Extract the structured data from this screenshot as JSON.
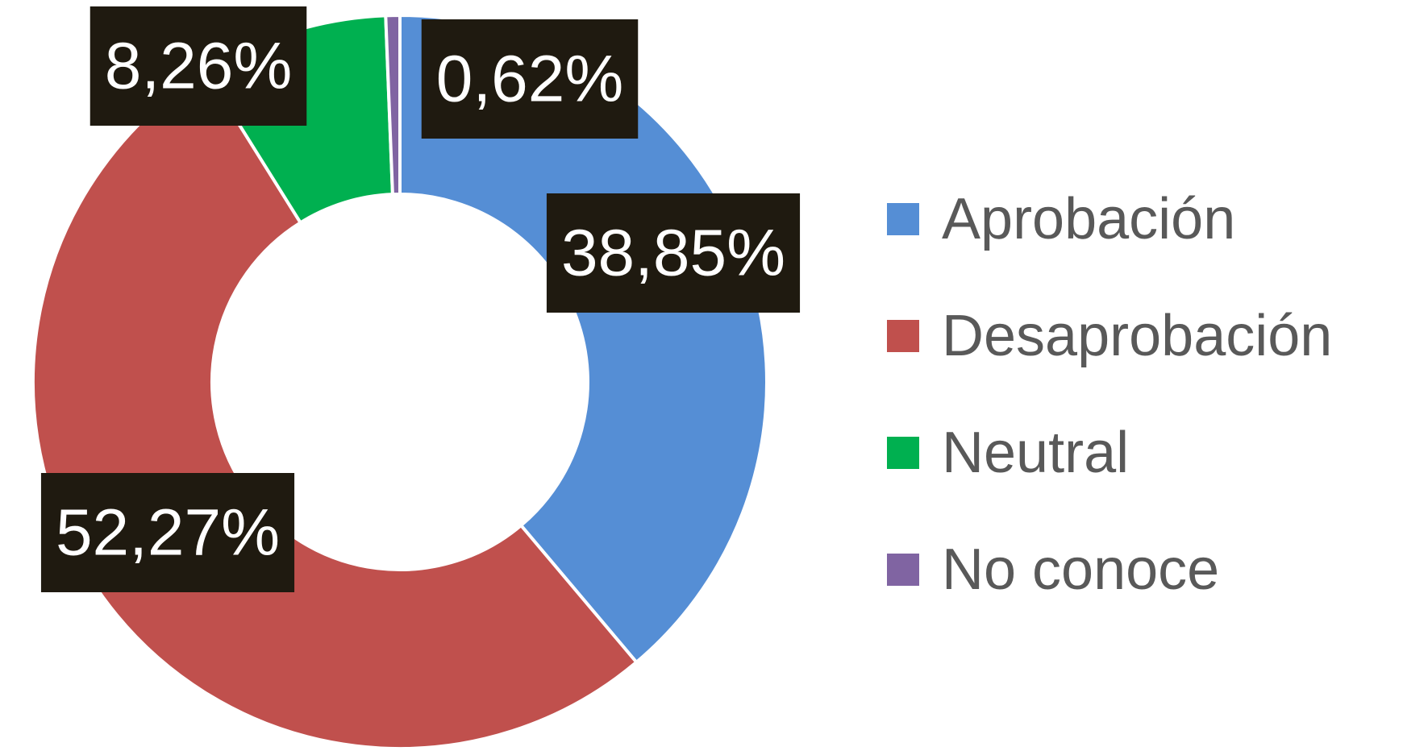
{
  "chart_data": {
    "type": "donut",
    "categories": [
      "Aprobación",
      "Desaprobación",
      "Neutral",
      "No conoce"
    ],
    "values": [
      38.85,
      52.27,
      8.26,
      0.62
    ],
    "value_labels": [
      "38,85%",
      "52,27%",
      "8,26%",
      "0,62%"
    ],
    "colors": [
      "#558ed5",
      "#c0504d",
      "#00b050",
      "#8064a2"
    ],
    "legend": "right"
  }
}
